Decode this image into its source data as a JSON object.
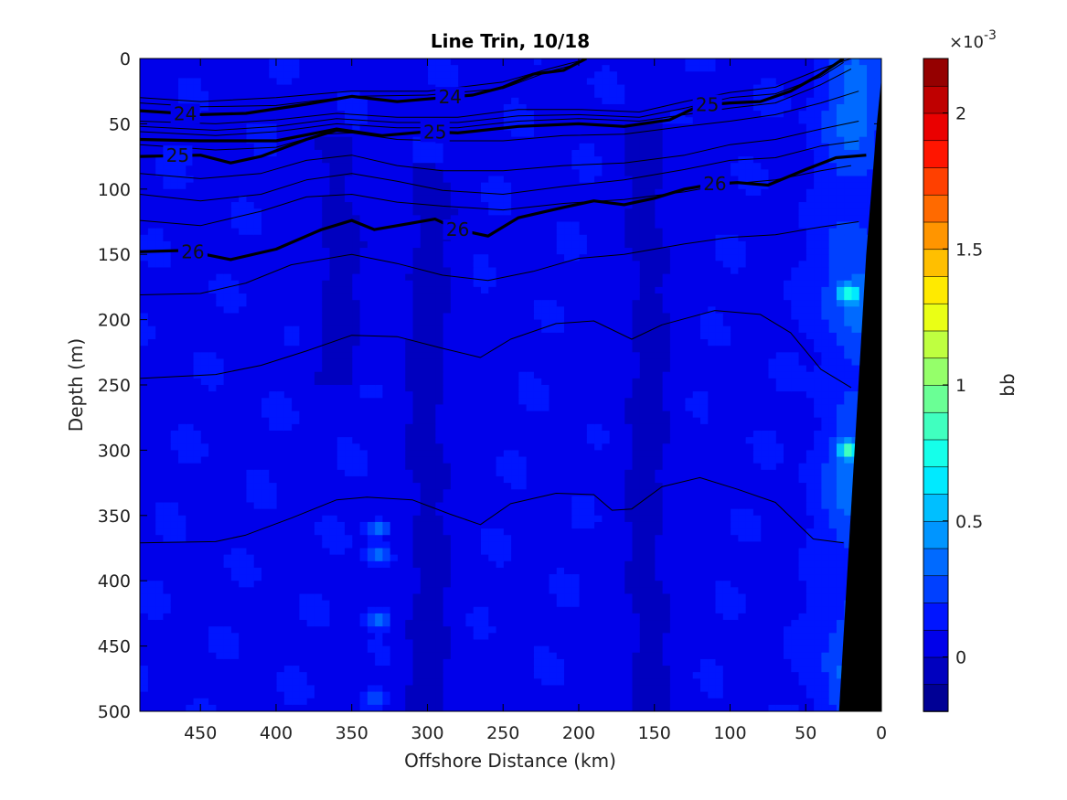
{
  "chart_data": {
    "type": "heatmap",
    "title": "Line Trin, 10/18",
    "xlabel": "Offshore Distance (km)",
    "ylabel": "Depth (m)",
    "xlim": [
      490,
      0
    ],
    "x_reversed": true,
    "ylim": [
      0,
      500
    ],
    "y_reversed": true,
    "xticks": [
      450,
      400,
      350,
      300,
      250,
      200,
      150,
      100,
      50,
      0
    ],
    "yticks": [
      0,
      50,
      100,
      150,
      200,
      250,
      300,
      350,
      400,
      450,
      500
    ],
    "colorbar": {
      "label": "bb",
      "exponent_label": "×10",
      "exponent": "-3",
      "range": [
        -0.2,
        2.2
      ],
      "ticks": [
        0,
        0.5,
        1,
        1.5,
        2
      ],
      "tick_labels": [
        "0",
        "0.5",
        "1",
        "1.5",
        "2"
      ],
      "colormap": "jet",
      "levels": 24
    },
    "background_value": 0.08,
    "field_features": [
      {
        "kind": "dark_band",
        "x": 360,
        "y": [
          60,
          250
        ],
        "value": -0.05
      },
      {
        "kind": "dark_band",
        "x": 300,
        "y": [
          80,
          500
        ],
        "value": -0.05
      },
      {
        "kind": "dark_band",
        "x": 155,
        "y": [
          50,
          500
        ],
        "value": -0.05
      },
      {
        "kind": "bright_spot",
        "x": 333,
        "y": 360,
        "value": 0.45
      },
      {
        "kind": "bright_spot",
        "x": 333,
        "y": 380,
        "value": 0.45
      },
      {
        "kind": "bright_spot",
        "x": 333,
        "y": 430,
        "value": 0.45
      },
      {
        "kind": "bright_spot",
        "x": 333,
        "y": 490,
        "value": 0.3
      },
      {
        "kind": "coastal_band",
        "x": [
          0,
          60
        ],
        "y": [
          0,
          500
        ],
        "value": 0.35
      },
      {
        "kind": "bright_spot",
        "x": 22,
        "y": 300,
        "value": 0.7
      },
      {
        "kind": "bright_spot",
        "x": 22,
        "y": 180,
        "value": 0.6
      }
    ],
    "bottom_mask": {
      "points": [
        [
          0,
          15
        ],
        [
          0,
          500
        ],
        [
          28,
          500
        ],
        [
          10,
          150
        ],
        [
          3,
          50
        ]
      ]
    },
    "contours": [
      {
        "label": "24",
        "bold": true,
        "labels_at": [
          460,
          285
        ],
        "points": [
          [
            490,
            40
          ],
          [
            450,
            43
          ],
          [
            420,
            42
          ],
          [
            380,
            35
          ],
          [
            350,
            29
          ],
          [
            320,
            33
          ],
          [
            290,
            30
          ],
          [
            270,
            28
          ],
          [
            250,
            22
          ],
          [
            230,
            12
          ],
          [
            210,
            9
          ],
          [
            195,
            0
          ]
        ]
      },
      {
        "label": "25",
        "bold": true,
        "labels_at": [
          295,
          115
        ],
        "points": [
          [
            490,
            62
          ],
          [
            450,
            63
          ],
          [
            400,
            63
          ],
          [
            360,
            54
          ],
          [
            330,
            59
          ],
          [
            300,
            56
          ],
          [
            280,
            57
          ],
          [
            240,
            52
          ],
          [
            200,
            50
          ],
          [
            170,
            52
          ],
          [
            140,
            47
          ],
          [
            120,
            36
          ],
          [
            100,
            34
          ],
          [
            80,
            33
          ],
          [
            60,
            25
          ],
          [
            40,
            12
          ],
          [
            25,
            0
          ]
        ]
      },
      {
        "label": "25",
        "bold": true,
        "labels_at": [
          465
        ],
        "points": [
          [
            490,
            75
          ],
          [
            450,
            74
          ],
          [
            430,
            80
          ],
          [
            410,
            75
          ],
          [
            380,
            62
          ],
          [
            360,
            55
          ],
          [
            350,
            56
          ]
        ]
      },
      {
        "label": "26",
        "bold": true,
        "labels_at": [
          455,
          280,
          110
        ],
        "points": [
          [
            490,
            148
          ],
          [
            460,
            147
          ],
          [
            430,
            154
          ],
          [
            400,
            146
          ],
          [
            370,
            131
          ],
          [
            350,
            124
          ],
          [
            335,
            131
          ],
          [
            310,
            126
          ],
          [
            295,
            123
          ],
          [
            280,
            131
          ],
          [
            260,
            136
          ],
          [
            240,
            122
          ],
          [
            210,
            114
          ],
          [
            190,
            109
          ],
          [
            170,
            112
          ],
          [
            150,
            107
          ],
          [
            130,
            100
          ],
          [
            110,
            96
          ],
          [
            95,
            95
          ],
          [
            75,
            97
          ],
          [
            50,
            85
          ],
          [
            30,
            76
          ],
          [
            10,
            74
          ]
        ]
      },
      {
        "label": "",
        "bold": false,
        "points": [
          [
            490,
            30
          ],
          [
            450,
            33
          ],
          [
            400,
            30
          ],
          [
            350,
            25
          ],
          [
            300,
            25
          ],
          [
            250,
            18
          ],
          [
            220,
            8
          ],
          [
            200,
            2
          ]
        ]
      },
      {
        "label": "",
        "bold": false,
        "points": [
          [
            490,
            34
          ],
          [
            450,
            37
          ],
          [
            400,
            36
          ],
          [
            350,
            29
          ],
          [
            300,
            28
          ],
          [
            250,
            23
          ],
          [
            220,
            10
          ],
          [
            200,
            4
          ]
        ]
      },
      {
        "label": "",
        "bold": false,
        "points": [
          [
            490,
            48
          ],
          [
            440,
            50
          ],
          [
            400,
            47
          ],
          [
            360,
            42
          ],
          [
            320,
            45
          ],
          [
            280,
            45
          ],
          [
            240,
            39
          ],
          [
            200,
            39
          ],
          [
            160,
            41
          ],
          [
            130,
            33
          ],
          [
            100,
            26
          ],
          [
            70,
            22
          ],
          [
            40,
            8
          ],
          [
            20,
            0
          ]
        ]
      },
      {
        "label": "",
        "bold": false,
        "points": [
          [
            490,
            52
          ],
          [
            440,
            55
          ],
          [
            400,
            52
          ],
          [
            360,
            46
          ],
          [
            320,
            49
          ],
          [
            280,
            49
          ],
          [
            240,
            44
          ],
          [
            200,
            43
          ],
          [
            160,
            45
          ],
          [
            130,
            38
          ],
          [
            100,
            30
          ],
          [
            70,
            27
          ],
          [
            40,
            14
          ],
          [
            25,
            3
          ]
        ]
      },
      {
        "label": "",
        "bold": false,
        "points": [
          [
            490,
            56
          ],
          [
            440,
            59
          ],
          [
            400,
            56
          ],
          [
            360,
            50
          ],
          [
            320,
            53
          ],
          [
            280,
            53
          ],
          [
            240,
            48
          ],
          [
            200,
            46
          ],
          [
            160,
            48
          ],
          [
            130,
            43
          ],
          [
            100,
            38
          ],
          [
            70,
            34
          ],
          [
            40,
            20
          ],
          [
            20,
            8
          ]
        ]
      },
      {
        "label": "",
        "bold": false,
        "points": [
          [
            490,
            66
          ],
          [
            440,
            70
          ],
          [
            400,
            68
          ],
          [
            370,
            58
          ],
          [
            350,
            57
          ],
          [
            320,
            62
          ],
          [
            290,
            63
          ],
          [
            250,
            63
          ],
          [
            210,
            59
          ],
          [
            170,
            58
          ],
          [
            130,
            52
          ],
          [
            100,
            48
          ],
          [
            70,
            43
          ],
          [
            40,
            34
          ],
          [
            15,
            25
          ]
        ]
      },
      {
        "label": "",
        "bold": false,
        "points": [
          [
            490,
            88
          ],
          [
            450,
            92
          ],
          [
            410,
            88
          ],
          [
            380,
            78
          ],
          [
            350,
            74
          ],
          [
            320,
            82
          ],
          [
            290,
            86
          ],
          [
            250,
            86
          ],
          [
            210,
            82
          ],
          [
            170,
            80
          ],
          [
            130,
            74
          ],
          [
            100,
            66
          ],
          [
            70,
            62
          ],
          [
            40,
            54
          ],
          [
            15,
            48
          ]
        ]
      },
      {
        "label": "",
        "bold": false,
        "points": [
          [
            490,
            104
          ],
          [
            450,
            109
          ],
          [
            410,
            104
          ],
          [
            380,
            93
          ],
          [
            350,
            88
          ],
          [
            320,
            94
          ],
          [
            290,
            101
          ],
          [
            250,
            104
          ],
          [
            210,
            98
          ],
          [
            170,
            93
          ],
          [
            130,
            85
          ],
          [
            100,
            78
          ],
          [
            70,
            76
          ],
          [
            40,
            67
          ],
          [
            15,
            63
          ]
        ]
      },
      {
        "label": "",
        "bold": false,
        "points": [
          [
            490,
            124
          ],
          [
            450,
            128
          ],
          [
            410,
            117
          ],
          [
            380,
            106
          ],
          [
            350,
            104
          ],
          [
            320,
            110
          ],
          [
            290,
            113
          ],
          [
            250,
            116
          ],
          [
            210,
            111
          ],
          [
            170,
            108
          ],
          [
            130,
            102
          ],
          [
            100,
            96
          ],
          [
            70,
            93
          ],
          [
            40,
            86
          ],
          [
            20,
            82
          ]
        ]
      },
      {
        "label": "",
        "bold": false,
        "points": [
          [
            490,
            181
          ],
          [
            450,
            180
          ],
          [
            420,
            172
          ],
          [
            390,
            158
          ],
          [
            350,
            150
          ],
          [
            320,
            157
          ],
          [
            290,
            166
          ],
          [
            260,
            170
          ],
          [
            230,
            163
          ],
          [
            200,
            153
          ],
          [
            170,
            150
          ],
          [
            130,
            142
          ],
          [
            100,
            137
          ],
          [
            70,
            135
          ],
          [
            40,
            129
          ],
          [
            15,
            125
          ]
        ]
      },
      {
        "label": "",
        "bold": false,
        "points": [
          [
            490,
            245
          ],
          [
            440,
            242
          ],
          [
            410,
            235
          ],
          [
            380,
            224
          ],
          [
            350,
            212
          ],
          [
            320,
            213
          ],
          [
            290,
            222
          ],
          [
            265,
            229
          ],
          [
            245,
            215
          ],
          [
            215,
            203
          ],
          [
            190,
            201
          ],
          [
            165,
            215
          ],
          [
            145,
            204
          ],
          [
            110,
            193
          ],
          [
            80,
            196
          ],
          [
            60,
            210
          ],
          [
            40,
            238
          ],
          [
            20,
            252
          ]
        ]
      },
      {
        "label": "",
        "bold": false,
        "points": [
          [
            490,
            371
          ],
          [
            440,
            370
          ],
          [
            420,
            365
          ],
          [
            390,
            352
          ],
          [
            360,
            338
          ],
          [
            340,
            336
          ],
          [
            310,
            338
          ],
          [
            285,
            349
          ],
          [
            265,
            357
          ],
          [
            245,
            341
          ],
          [
            215,
            333
          ],
          [
            190,
            334
          ],
          [
            178,
            346
          ],
          [
            165,
            345
          ],
          [
            145,
            328
          ],
          [
            120,
            321
          ],
          [
            95,
            330
          ],
          [
            70,
            340
          ],
          [
            45,
            368
          ],
          [
            25,
            371
          ]
        ]
      }
    ]
  }
}
